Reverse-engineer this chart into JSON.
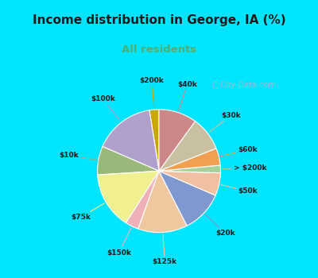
{
  "title": "Income distribution in George, IA (%)",
  "subtitle": "All residents",
  "title_color": "#1a1a1a",
  "subtitle_color": "#4caf78",
  "background_top": "#00e5ff",
  "background_chart_color": "#c8e8d8",
  "watermark": "City-Data.com",
  "labels": [
    "$200k",
    "$100k",
    "$10k",
    "$75k",
    "$150k",
    "$125k",
    "$20k",
    "$50k",
    "> $200k",
    "$60k",
    "$30k",
    "$40k"
  ],
  "values": [
    2.5,
    16.0,
    7.5,
    15.0,
    3.5,
    13.0,
    11.0,
    6.0,
    2.0,
    4.5,
    9.0,
    10.0
  ],
  "colors": [
    "#c8a800",
    "#b0a0cc",
    "#9ab87a",
    "#f0f090",
    "#f0b0b8",
    "#f0c8a0",
    "#8098d0",
    "#f0c0a0",
    "#a8d098",
    "#f0a050",
    "#c8c0a0",
    "#cc8888"
  ],
  "startangle": 90,
  "label_colors": [
    "#c8a800",
    "#b0a0cc",
    "#9ab87a",
    "#f0f090",
    "#f0b0b8",
    "#f0c8a0",
    "#8098d0",
    "#f0c0a0",
    "#a8d098",
    "#f0a050",
    "#c8c0a0",
    "#cc8888"
  ]
}
